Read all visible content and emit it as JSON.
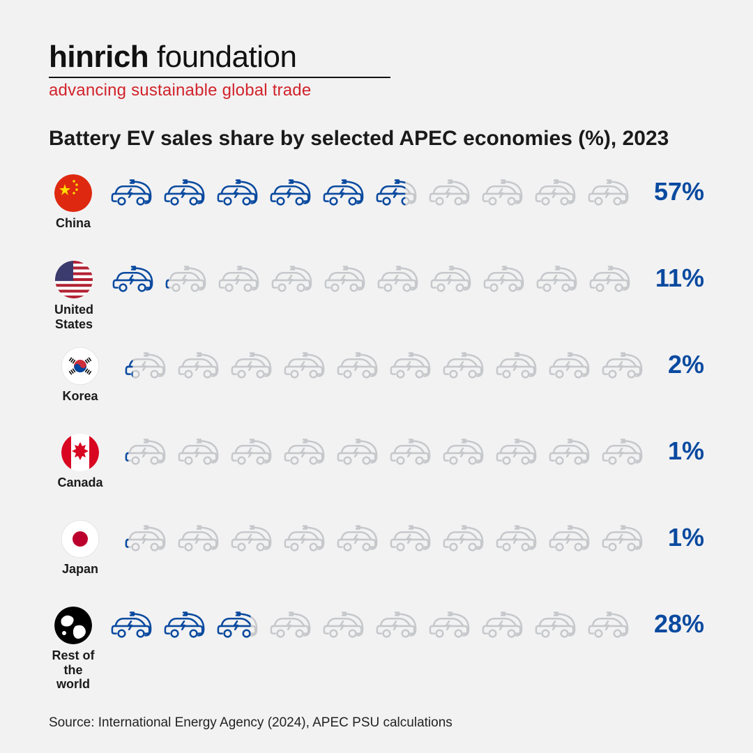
{
  "logo": {
    "brand_bold": "hinrich",
    "brand_light": " foundation",
    "tagline": "advancing sustainable global trade",
    "brand_color": "#111111",
    "tagline_color": "#d2232a",
    "rule_color": "#111111"
  },
  "chart": {
    "type": "pictogram",
    "title": "Battery EV sales share by selected APEC economies (%), 2023",
    "title_fontsize": 30,
    "title_color": "#1a1a1a",
    "icon_total": 10,
    "icon_unit_percent": 10,
    "icon_active_color": "#0a4a9f",
    "icon_inactive_color": "#c6c8cb",
    "percent_color": "#0a4a9f",
    "percent_fontsize": 36,
    "label_fontsize": 18,
    "background_color": "#f2f2f3",
    "rows": [
      {
        "id": "china",
        "label": "China",
        "flag": "china",
        "percent": 57,
        "percent_text": "57%"
      },
      {
        "id": "us",
        "label": "United\nStates",
        "flag": "us",
        "percent": 11,
        "percent_text": "11%"
      },
      {
        "id": "korea",
        "label": "Korea",
        "flag": "korea",
        "percent": 2,
        "percent_text": "2%"
      },
      {
        "id": "canada",
        "label": "Canada",
        "flag": "canada",
        "percent": 1,
        "percent_text": "1%"
      },
      {
        "id": "japan",
        "label": "Japan",
        "flag": "japan",
        "percent": 1,
        "percent_text": "1%"
      },
      {
        "id": "world",
        "label": "Rest of\nthe world",
        "flag": "world",
        "percent": 28,
        "percent_text": "28%"
      }
    ]
  },
  "source": "Source: International Energy Agency (2024), APEC PSU calculations",
  "flags": {
    "china": {
      "bg": "#de2910",
      "star": "#ffde00"
    },
    "us": {
      "stripes_red": "#b22234",
      "stripes_white": "#ffffff",
      "canton": "#3c3b6e"
    },
    "korea": {
      "bg": "#ffffff",
      "border": "#d0d0d0",
      "red": "#cd2e3a",
      "blue": "#0047a0",
      "bars": "#000000"
    },
    "canada": {
      "bg": "#ffffff",
      "red": "#d80621"
    },
    "japan": {
      "bg": "#ffffff",
      "border": "#d0d0d0",
      "red": "#bc002d"
    },
    "world": {
      "bg": "#000000",
      "land": "#ffffff"
    }
  }
}
